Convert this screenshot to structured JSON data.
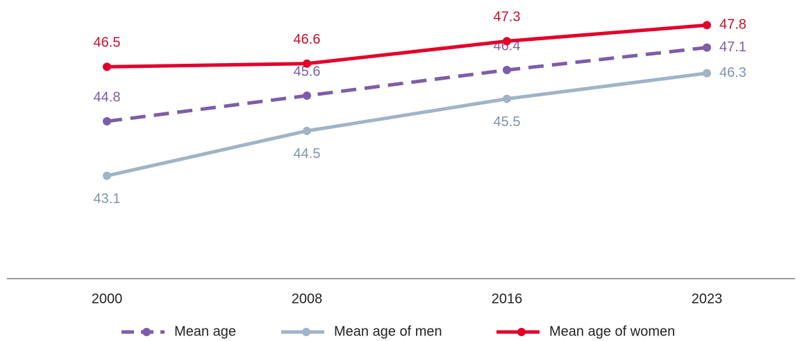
{
  "chart_data": {
    "type": "line",
    "categories": [
      "2000",
      "2008",
      "2016",
      "2023"
    ],
    "series": [
      {
        "name": "Mean age",
        "color": "#7b5ea7",
        "label_color": "#7b5ea7",
        "line_style": "dashed",
        "values": [
          44.8,
          45.6,
          46.4,
          47.1
        ]
      },
      {
        "name": "Mean age of men",
        "color": "#a0b4c6",
        "label_color": "#7d95ab",
        "line_style": "solid",
        "values": [
          43.1,
          44.5,
          45.5,
          46.3
        ]
      },
      {
        "name": "Mean age of women",
        "color": "#e2002b",
        "label_color": "#c3102e",
        "line_style": "solid",
        "values": [
          46.5,
          46.6,
          47.3,
          47.8
        ]
      }
    ],
    "ylim": [
      40,
      48
    ],
    "legend": "bottom"
  }
}
